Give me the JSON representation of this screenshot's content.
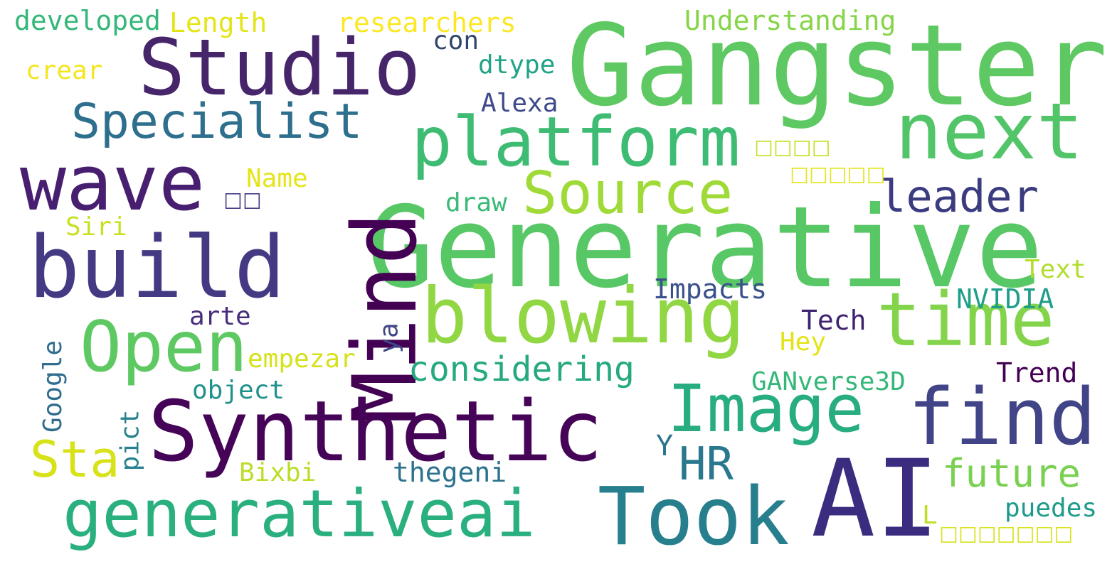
{
  "words": [
    {
      "text": "Gangster",
      "color": "#5ec962"
    },
    {
      "text": "Generative",
      "color": "#58c765"
    },
    {
      "text": "Studio",
      "color": "#46256b"
    },
    {
      "text": "next",
      "color": "#52c569"
    },
    {
      "text": "platform",
      "color": "#3fbc73"
    },
    {
      "text": "wave",
      "color": "#481f70"
    },
    {
      "text": "Mind",
      "color": "#440154"
    },
    {
      "text": "build",
      "color": "#443a83"
    },
    {
      "text": "Specialist",
      "color": "#2e6f8e"
    },
    {
      "text": "Source",
      "color": "#a0da39"
    },
    {
      "text": "blowing",
      "color": "#90d743"
    },
    {
      "text": "time",
      "color": "#84d44b"
    },
    {
      "text": "Open",
      "color": "#5ec962"
    },
    {
      "text": "Synthetic",
      "color": "#450457"
    },
    {
      "text": "Image",
      "color": "#27ad81"
    },
    {
      "text": "find",
      "color": "#414487"
    },
    {
      "text": "AI",
      "color": "#3b2c7f"
    },
    {
      "text": "Took",
      "color": "#277f8e"
    },
    {
      "text": "generativeai",
      "color": "#2ab07f"
    },
    {
      "text": "leader",
      "color": "#3b3c80"
    },
    {
      "text": "considering",
      "color": "#26a980"
    },
    {
      "text": "HR",
      "color": "#2a788e"
    },
    {
      "text": "future",
      "color": "#7ad151"
    },
    {
      "text": "Sta",
      "color": "#d8e219"
    },
    {
      "text": "developed",
      "color": "#35b779"
    },
    {
      "text": "Length",
      "color": "#e5e419"
    },
    {
      "text": "researchers",
      "color": "#fde725"
    },
    {
      "text": "Understanding",
      "color": "#86d549"
    },
    {
      "text": "con",
      "color": "#31446b"
    },
    {
      "text": "dtype",
      "color": "#20a386"
    },
    {
      "text": "crear",
      "color": "#f4e61e"
    },
    {
      "text": "Alexa",
      "color": "#3e4989"
    },
    {
      "text": "☐☐☐☐",
      "color": "#c2df23"
    },
    {
      "text": "☐☐☐☐☐",
      "color": "#e2e418"
    },
    {
      "text": "Name",
      "color": "#e5e419"
    },
    {
      "text": "☐☐",
      "color": "#433e85"
    },
    {
      "text": "draw",
      "color": "#3aba76"
    },
    {
      "text": "Siri",
      "color": "#c8e020"
    },
    {
      "text": "Text",
      "color": "#b2dd2d"
    },
    {
      "text": "Impacts",
      "color": "#3b518b"
    },
    {
      "text": "NVIDIA",
      "color": "#1f9e89"
    },
    {
      "text": "arte",
      "color": "#472d7b"
    },
    {
      "text": "Tech",
      "color": "#3f2371"
    },
    {
      "text": "Hey",
      "color": "#e2e418"
    },
    {
      "text": "ya",
      "color": "#3f4788"
    },
    {
      "text": "empezar",
      "color": "#d5e21a"
    },
    {
      "text": "Google",
      "color": "#2f6c8e"
    },
    {
      "text": "object",
      "color": "#20928c"
    },
    {
      "text": "GANverse3D",
      "color": "#35b779"
    },
    {
      "text": "Trend",
      "color": "#440154"
    },
    {
      "text": "pict",
      "color": "#26828e"
    },
    {
      "text": "Y",
      "color": "#2b748e"
    },
    {
      "text": "Bixbi",
      "color": "#bade28"
    },
    {
      "text": "thegeni",
      "color": "#2c728e"
    },
    {
      "text": "puedes",
      "color": "#1e9b8a"
    },
    {
      "text": "L",
      "color": "#bddf26"
    },
    {
      "text": "☐☐☐☐☐☐☐",
      "color": "#d8e219"
    }
  ]
}
